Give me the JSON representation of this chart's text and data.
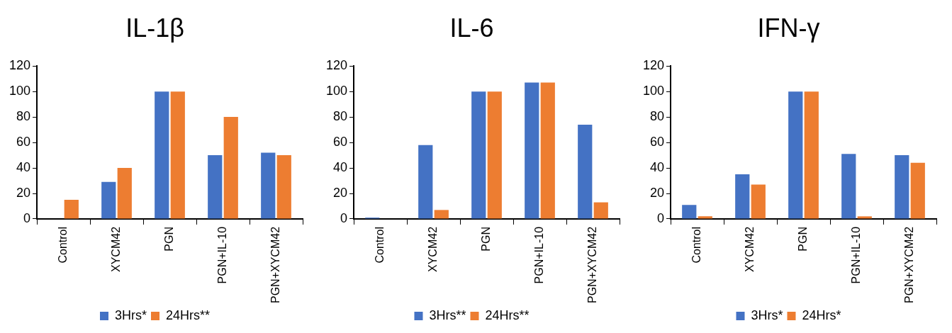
{
  "chart_data": [
    {
      "type": "bar",
      "title": "IL-1β",
      "categories": [
        "Control",
        "XYCM42",
        "PGN",
        "PGN+IL-10",
        "PGN+XYCM42"
      ],
      "series": [
        {
          "name": "3Hrs*",
          "color": "#4472c4",
          "values": [
            0,
            29,
            100,
            50,
            52
          ]
        },
        {
          "name": "24Hrs**",
          "color": "#ed7d31",
          "values": [
            15,
            40,
            100,
            80,
            50
          ]
        }
      ],
      "ylim": [
        0,
        120
      ],
      "yticks": [
        0,
        20,
        40,
        60,
        80,
        100,
        120
      ],
      "legend": "bottom",
      "grid": false
    },
    {
      "type": "bar",
      "title": "IL-6",
      "categories": [
        "Control",
        "XYCM42",
        "PGN",
        "PGN+IL-10",
        "PGN+XYCM42"
      ],
      "series": [
        {
          "name": "3Hrs**",
          "color": "#4472c4",
          "values": [
            1,
            58,
            100,
            107,
            74
          ]
        },
        {
          "name": "24Hrs**",
          "color": "#ed7d31",
          "values": [
            0,
            7,
            100,
            107,
            13
          ]
        }
      ],
      "ylim": [
        0,
        120
      ],
      "yticks": [
        0,
        20,
        40,
        60,
        80,
        100,
        120
      ],
      "legend": "bottom",
      "grid": false
    },
    {
      "type": "bar",
      "title": "IFN-γ",
      "categories": [
        "Control",
        "XYCM42",
        "PGN",
        "PGN+IL-10",
        "PGN+XYCM42"
      ],
      "series": [
        {
          "name": "3Hrs*",
          "color": "#4472c4",
          "values": [
            11,
            35,
            100,
            51,
            50
          ]
        },
        {
          "name": "24Hrs*",
          "color": "#ed7d31",
          "values": [
            2,
            27,
            100,
            2,
            44
          ]
        }
      ],
      "ylim": [
        0,
        120
      ],
      "yticks": [
        0,
        20,
        40,
        60,
        80,
        100,
        120
      ],
      "legend": "bottom",
      "grid": false
    }
  ]
}
